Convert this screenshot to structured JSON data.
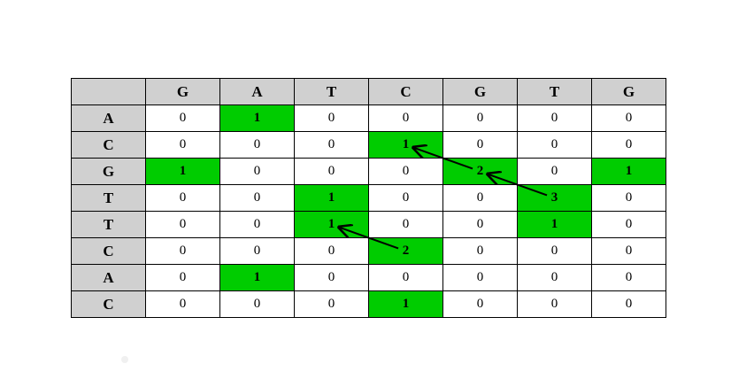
{
  "matrix": {
    "corner": "",
    "columns": [
      "G",
      "A",
      "T",
      "C",
      "G",
      "T",
      "G"
    ],
    "rows": [
      {
        "label": "A",
        "cells": [
          "0",
          "1",
          "0",
          "0",
          "0",
          "0",
          "0"
        ],
        "match": [
          false,
          true,
          false,
          false,
          false,
          false,
          false
        ]
      },
      {
        "label": "C",
        "cells": [
          "0",
          "0",
          "0",
          "1",
          "0",
          "0",
          "0"
        ],
        "match": [
          false,
          false,
          false,
          true,
          false,
          false,
          false
        ]
      },
      {
        "label": "G",
        "cells": [
          "1",
          "0",
          "0",
          "0",
          "2",
          "0",
          "1"
        ],
        "match": [
          true,
          false,
          false,
          false,
          true,
          false,
          true
        ]
      },
      {
        "label": "T",
        "cells": [
          "0",
          "0",
          "1",
          "0",
          "0",
          "3",
          "0"
        ],
        "match": [
          false,
          false,
          true,
          false,
          false,
          true,
          false
        ]
      },
      {
        "label": "T",
        "cells": [
          "0",
          "0",
          "1",
          "0",
          "0",
          "1",
          "0"
        ],
        "match": [
          false,
          false,
          true,
          false,
          false,
          true,
          false
        ]
      },
      {
        "label": "C",
        "cells": [
          "0",
          "0",
          "0",
          "2",
          "0",
          "0",
          "0"
        ],
        "match": [
          false,
          false,
          false,
          true,
          false,
          false,
          false
        ]
      },
      {
        "label": "A",
        "cells": [
          "0",
          "1",
          "0",
          "0",
          "0",
          "0",
          "0"
        ],
        "match": [
          false,
          true,
          false,
          false,
          false,
          false,
          false
        ]
      },
      {
        "label": "C",
        "cells": [
          "0",
          "0",
          "0",
          "1",
          "0",
          "0",
          "0"
        ],
        "match": [
          false,
          false,
          false,
          true,
          false,
          false,
          false
        ]
      }
    ],
    "colors": {
      "match": "#00cc00",
      "header": "#d0d0d0",
      "arrow": "#000000"
    }
  },
  "traceback_arrows": [
    {
      "from": {
        "row": 3,
        "col": 5
      },
      "to": {
        "row": 2,
        "col": 4
      }
    },
    {
      "from": {
        "row": 2,
        "col": 4
      },
      "to": {
        "row": 1,
        "col": 3
      }
    },
    {
      "from": {
        "row": 5,
        "col": 3
      },
      "to": {
        "row": 4,
        "col": 2
      }
    }
  ]
}
